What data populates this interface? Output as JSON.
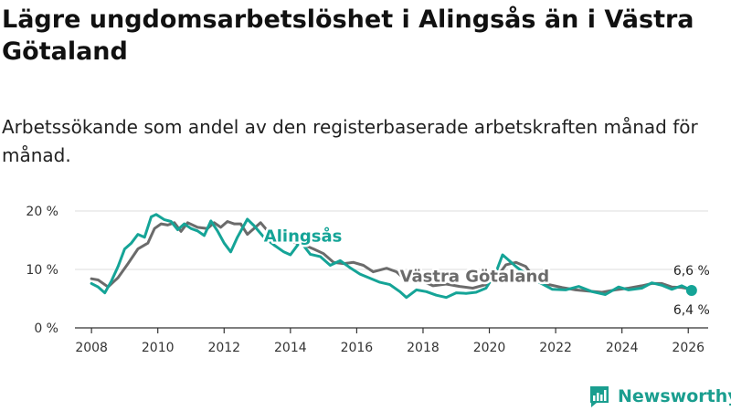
{
  "title": "Lägre ungdomsarbetslöshet i Alingsås än i Västra Götaland",
  "subtitle": "Arbetssökande som andel av den registerbaserade arbetskraften månad för månad.",
  "brand": {
    "name": "Newsworthy"
  },
  "colors": {
    "alingsas": "#15a497",
    "vastra": "#6b6b6b",
    "axis": "#333333",
    "grid": "#dddddd"
  },
  "chart_data": {
    "type": "line",
    "xlim": [
      2007.5,
      2026.6
    ],
    "ylim": [
      0,
      20
    ],
    "x_ticks": [
      {
        "value": 2008,
        "label": "2008"
      },
      {
        "value": 2010,
        "label": "2010"
      },
      {
        "value": 2012,
        "label": "2012"
      },
      {
        "value": 2014,
        "label": "2014"
      },
      {
        "value": 2016,
        "label": "2016"
      },
      {
        "value": 2018,
        "label": "2018"
      },
      {
        "value": 2020,
        "label": "2020"
      },
      {
        "value": 2022,
        "label": "2022"
      },
      {
        "value": 2024,
        "label": "2024"
      },
      {
        "value": 2026,
        "label": "2026"
      }
    ],
    "y_ticks": [
      {
        "value": 0,
        "label": "0 %"
      },
      {
        "value": 10,
        "label": "10 %"
      },
      {
        "value": 20,
        "label": "20 %"
      }
    ],
    "series": [
      {
        "name": "Västra Götaland",
        "label": "Västra Götaland",
        "end_label": "6,6 %",
        "points": [
          [
            2008.0,
            8.4
          ],
          [
            2008.2,
            8.2
          ],
          [
            2008.5,
            7.0
          ],
          [
            2008.8,
            8.6
          ],
          [
            2009.1,
            11.0
          ],
          [
            2009.4,
            13.5
          ],
          [
            2009.7,
            14.5
          ],
          [
            2009.9,
            17.0
          ],
          [
            2010.1,
            17.8
          ],
          [
            2010.3,
            17.6
          ],
          [
            2010.5,
            18.0
          ],
          [
            2010.7,
            16.5
          ],
          [
            2010.9,
            18.0
          ],
          [
            2011.2,
            17.2
          ],
          [
            2011.5,
            17.0
          ],
          [
            2011.7,
            18.0
          ],
          [
            2011.9,
            17.2
          ],
          [
            2012.1,
            18.2
          ],
          [
            2012.3,
            17.8
          ],
          [
            2012.5,
            17.8
          ],
          [
            2012.7,
            16.0
          ],
          [
            2012.9,
            17.0
          ],
          [
            2013.1,
            18.0
          ],
          [
            2013.4,
            16.0
          ],
          [
            2013.7,
            14.7
          ],
          [
            2014.0,
            14.8
          ],
          [
            2014.4,
            14.2
          ],
          [
            2014.7,
            13.5
          ],
          [
            2015.0,
            12.7
          ],
          [
            2015.3,
            11.2
          ],
          [
            2015.6,
            11.0
          ],
          [
            2015.9,
            11.2
          ],
          [
            2016.2,
            10.7
          ],
          [
            2016.5,
            9.6
          ],
          [
            2016.9,
            10.2
          ],
          [
            2017.2,
            9.6
          ],
          [
            2017.5,
            8.1
          ],
          [
            2017.9,
            8.2
          ],
          [
            2018.3,
            7.2
          ],
          [
            2018.7,
            7.5
          ],
          [
            2019.1,
            7.1
          ],
          [
            2019.5,
            6.8
          ],
          [
            2019.9,
            7.4
          ],
          [
            2020.2,
            8.5
          ],
          [
            2020.5,
            10.8
          ],
          [
            2020.8,
            11.2
          ],
          [
            2021.1,
            10.5
          ],
          [
            2021.4,
            8.2
          ],
          [
            2021.8,
            7.4
          ],
          [
            2022.2,
            6.9
          ],
          [
            2022.6,
            6.5
          ],
          [
            2023.0,
            6.3
          ],
          [
            2023.4,
            6.1
          ],
          [
            2023.8,
            6.5
          ],
          [
            2024.2,
            6.8
          ],
          [
            2024.6,
            7.2
          ],
          [
            2024.9,
            7.6
          ],
          [
            2025.2,
            7.6
          ],
          [
            2025.5,
            7.0
          ],
          [
            2025.8,
            6.9
          ],
          [
            2026.1,
            6.6
          ]
        ]
      },
      {
        "name": "Alingsås",
        "label": "Alingsås",
        "end_label": "6,4 %",
        "points": [
          [
            2008.0,
            7.6
          ],
          [
            2008.2,
            7.0
          ],
          [
            2008.4,
            6.0
          ],
          [
            2008.6,
            8.0
          ],
          [
            2008.8,
            10.5
          ],
          [
            2009.0,
            13.5
          ],
          [
            2009.2,
            14.5
          ],
          [
            2009.4,
            16.0
          ],
          [
            2009.6,
            15.5
          ],
          [
            2009.8,
            19.0
          ],
          [
            2009.95,
            19.4
          ],
          [
            2010.2,
            18.5
          ],
          [
            2010.4,
            18.2
          ],
          [
            2010.6,
            16.8
          ],
          [
            2010.8,
            17.8
          ],
          [
            2011.0,
            17.0
          ],
          [
            2011.2,
            16.6
          ],
          [
            2011.4,
            15.8
          ],
          [
            2011.6,
            18.3
          ],
          [
            2011.8,
            16.6
          ],
          [
            2012.0,
            14.5
          ],
          [
            2012.2,
            13.0
          ],
          [
            2012.4,
            15.5
          ],
          [
            2012.7,
            18.6
          ],
          [
            2012.9,
            17.5
          ],
          [
            2013.2,
            15.5
          ],
          [
            2013.5,
            14.2
          ],
          [
            2013.8,
            13.0
          ],
          [
            2014.0,
            12.5
          ],
          [
            2014.3,
            14.8
          ],
          [
            2014.6,
            12.6
          ],
          [
            2014.9,
            12.2
          ],
          [
            2015.2,
            10.7
          ],
          [
            2015.5,
            11.5
          ],
          [
            2015.8,
            10.3
          ],
          [
            2016.1,
            9.2
          ],
          [
            2016.4,
            8.5
          ],
          [
            2016.7,
            7.8
          ],
          [
            2017.0,
            7.4
          ],
          [
            2017.3,
            6.2
          ],
          [
            2017.5,
            5.2
          ],
          [
            2017.8,
            6.5
          ],
          [
            2018.1,
            6.2
          ],
          [
            2018.4,
            5.6
          ],
          [
            2018.7,
            5.2
          ],
          [
            2019.0,
            6.0
          ],
          [
            2019.3,
            5.9
          ],
          [
            2019.6,
            6.1
          ],
          [
            2019.9,
            6.8
          ],
          [
            2020.2,
            9.5
          ],
          [
            2020.4,
            12.5
          ],
          [
            2020.6,
            11.5
          ],
          [
            2020.8,
            10.5
          ],
          [
            2021.1,
            9.2
          ],
          [
            2021.5,
            7.8
          ],
          [
            2021.9,
            6.6
          ],
          [
            2022.3,
            6.5
          ],
          [
            2022.7,
            7.1
          ],
          [
            2023.1,
            6.2
          ],
          [
            2023.5,
            5.7
          ],
          [
            2023.9,
            7.0
          ],
          [
            2024.2,
            6.5
          ],
          [
            2024.6,
            6.8
          ],
          [
            2024.9,
            7.7
          ],
          [
            2025.2,
            7.3
          ],
          [
            2025.5,
            6.6
          ],
          [
            2025.8,
            7.2
          ],
          [
            2026.1,
            6.4
          ]
        ]
      }
    ]
  }
}
